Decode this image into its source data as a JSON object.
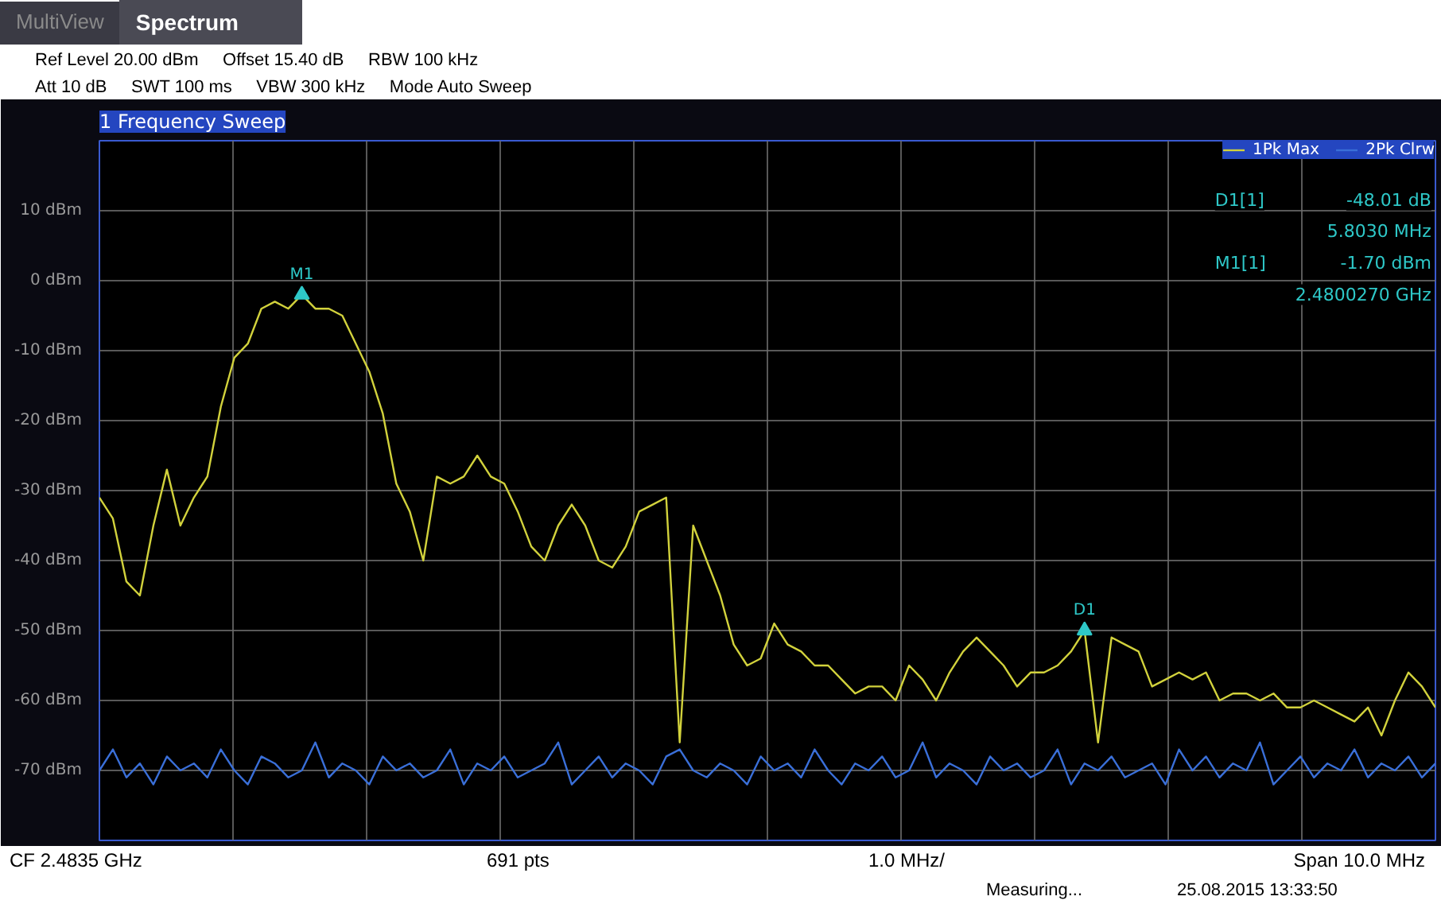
{
  "chart_data": {
    "type": "line",
    "title": "1 Frequency Sweep",
    "categories": [
      null,
      null,
      null,
      null,
      null,
      null,
      null,
      null,
      null,
      null,
      null,
      null,
      null,
      null,
      null,
      null,
      null,
      null,
      null,
      null,
      null,
      null,
      null,
      null,
      null,
      null,
      null,
      null,
      null,
      null,
      null,
      null,
      null,
      null,
      null,
      null,
      null,
      null,
      null,
      null,
      null,
      null,
      null,
      null,
      null,
      null,
      null,
      null,
      null,
      null,
      null,
      null,
      null,
      null,
      null,
      null,
      null,
      null,
      null,
      null,
      null,
      null,
      null,
      null,
      null,
      null,
      null,
      null,
      null,
      null,
      null,
      null,
      null,
      null,
      null,
      null,
      null,
      null,
      null,
      null,
      null,
      null,
      null,
      null,
      null,
      null,
      null,
      null,
      null,
      null,
      null,
      null,
      null,
      null,
      null,
      null,
      null,
      null,
      null,
      null
    ],
    "series": [
      {
        "name": "1Pk Max",
        "color": "#d2d23c",
        "values": [
          -31,
          -34,
          -43,
          -45,
          -35,
          -27,
          -35,
          -31,
          -28,
          -18,
          -11,
          -9,
          -4,
          -3,
          -4,
          -2,
          -4,
          -4,
          -5,
          -9,
          -13,
          -19,
          -29,
          -33,
          -40,
          -28,
          -29,
          -28,
          -25,
          -28,
          -29,
          -33,
          -38,
          -40,
          -35,
          -32,
          -35,
          -40,
          -41,
          -38,
          -33,
          -32,
          -31,
          -66,
          -35,
          -40,
          -45,
          -52,
          -55,
          -54,
          -49,
          -52,
          -53,
          -55,
          -55,
          -57,
          -59,
          -58,
          -58,
          -60,
          -55,
          -57,
          -60,
          -56,
          -53,
          -51,
          -53,
          -55,
          -58,
          -56,
          -56,
          -55,
          -53,
          -50,
          -66,
          -51,
          -52,
          -53,
          -58,
          -57,
          -56,
          -57,
          -56,
          -60,
          -59,
          -59,
          -60,
          -59,
          -61,
          -61,
          -60,
          -61,
          -62,
          -63,
          -61,
          -65,
          -60,
          -56,
          -58,
          -61
        ]
      },
      {
        "name": "2Pk Clrw",
        "color": "#3a6fd8",
        "values": [
          -70,
          -67,
          -71,
          -69,
          -72,
          -68,
          -70,
          -69,
          -71,
          -67,
          -70,
          -72,
          -68,
          -69,
          -71,
          -70,
          -66,
          -71,
          -69,
          -70,
          -72,
          -68,
          -70,
          -69,
          -71,
          -70,
          -67,
          -72,
          -69,
          -70,
          -68,
          -71,
          -70,
          -69,
          -66,
          -72,
          -70,
          -68,
          -71,
          -69,
          -70,
          -72,
          -68,
          -67,
          -70,
          -71,
          -69,
          -70,
          -72,
          -68,
          -70,
          -69,
          -71,
          -67,
          -70,
          -72,
          -69,
          -70,
          -68,
          -71,
          -70,
          -66,
          -71,
          -69,
          -70,
          -72,
          -68,
          -70,
          -69,
          -71,
          -70,
          -67,
          -72,
          -69,
          -70,
          -68,
          -71,
          -70,
          -69,
          -72,
          -67,
          -70,
          -68,
          -71,
          -69,
          -70,
          -66,
          -72,
          -70,
          -68,
          -71,
          -69,
          -70,
          -67,
          -71,
          -69,
          -70,
          -68,
          -71,
          -69
        ]
      },
      {
        "name": "M1",
        "type": "scatter",
        "marker": "triangle",
        "color": "#2ec8c8",
        "values": [
          null,
          null,
          null,
          null,
          null,
          null,
          null,
          null,
          null,
          null,
          null,
          null,
          null,
          null,
          null,
          -2,
          null,
          null,
          null,
          null,
          null,
          null,
          null,
          null,
          null,
          null,
          null,
          null,
          null,
          null,
          null,
          null,
          null,
          null,
          null,
          null,
          null,
          null,
          null,
          null,
          null,
          null,
          null,
          null,
          null,
          null,
          null,
          null,
          null,
          null,
          null,
          null,
          null,
          null,
          null,
          null,
          null,
          null,
          null,
          null,
          null,
          null,
          null,
          null,
          null,
          null,
          null,
          null,
          null,
          null,
          null,
          null,
          null,
          null,
          null,
          null,
          null,
          null,
          null,
          null,
          null,
          null,
          null,
          null,
          null,
          null,
          null,
          null,
          null,
          null,
          null,
          null,
          null,
          null,
          null,
          null,
          null,
          null,
          null,
          null
        ]
      },
      {
        "name": "D1",
        "type": "scatter",
        "marker": "triangle",
        "color": "#2ec8c8",
        "values": [
          null,
          null,
          null,
          null,
          null,
          null,
          null,
          null,
          null,
          null,
          null,
          null,
          null,
          null,
          null,
          null,
          null,
          null,
          null,
          null,
          null,
          null,
          null,
          null,
          null,
          null,
          null,
          null,
          null,
          null,
          null,
          null,
          null,
          null,
          null,
          null,
          null,
          null,
          null,
          null,
          null,
          null,
          null,
          null,
          null,
          null,
          null,
          null,
          null,
          null,
          null,
          null,
          null,
          null,
          null,
          null,
          null,
          null,
          null,
          null,
          null,
          null,
          null,
          null,
          null,
          null,
          null,
          null,
          null,
          null,
          null,
          null,
          null,
          -50,
          null,
          null,
          null,
          null,
          null,
          null,
          null,
          null,
          null,
          null,
          null,
          null,
          null,
          null,
          null,
          null,
          null,
          null,
          null,
          null,
          null,
          null,
          null,
          null,
          null,
          null
        ]
      }
    ],
    "ylim": [
      -80,
      20
    ],
    "yticks": [
      {
        "value": 20,
        "label": null
      },
      {
        "value": 10,
        "label": "10 dBm"
      },
      {
        "value": 0,
        "label": "0 dBm"
      },
      {
        "value": -10,
        "label": "-10 dBm"
      },
      {
        "value": -20,
        "label": "-20 dBm"
      },
      {
        "value": -30,
        "label": "-30 dBm"
      },
      {
        "value": -40,
        "label": "-40 dBm"
      },
      {
        "value": -50,
        "label": "-50 dBm"
      },
      {
        "value": -60,
        "label": "-60 dBm"
      },
      {
        "value": -70,
        "label": "-70 dBm"
      },
      {
        "value": -80,
        "label": null
      }
    ],
    "grid": true,
    "legend": "top right",
    "annotations": [
      "MultiView",
      "Spectrum",
      "Ref Level 20.00 dBm",
      "Offset 15.40 dB",
      "RBW 100 kHz",
      "Att 10 dB",
      "SWT 100 ms",
      "VBW 300 kHz",
      "Mode Auto Sweep",
      "D1[1]",
      "-48.01 dB",
      "5.8030 MHz",
      "M1[1]",
      "-1.70 dBm",
      "2.4800270 GHz",
      "CF 2.4835 GHz",
      "691 pts",
      "1.0 MHz/",
      "Span 10.0 MHz",
      "Measuring...",
      "25.08.2015 13:33:50"
    ]
  }
}
